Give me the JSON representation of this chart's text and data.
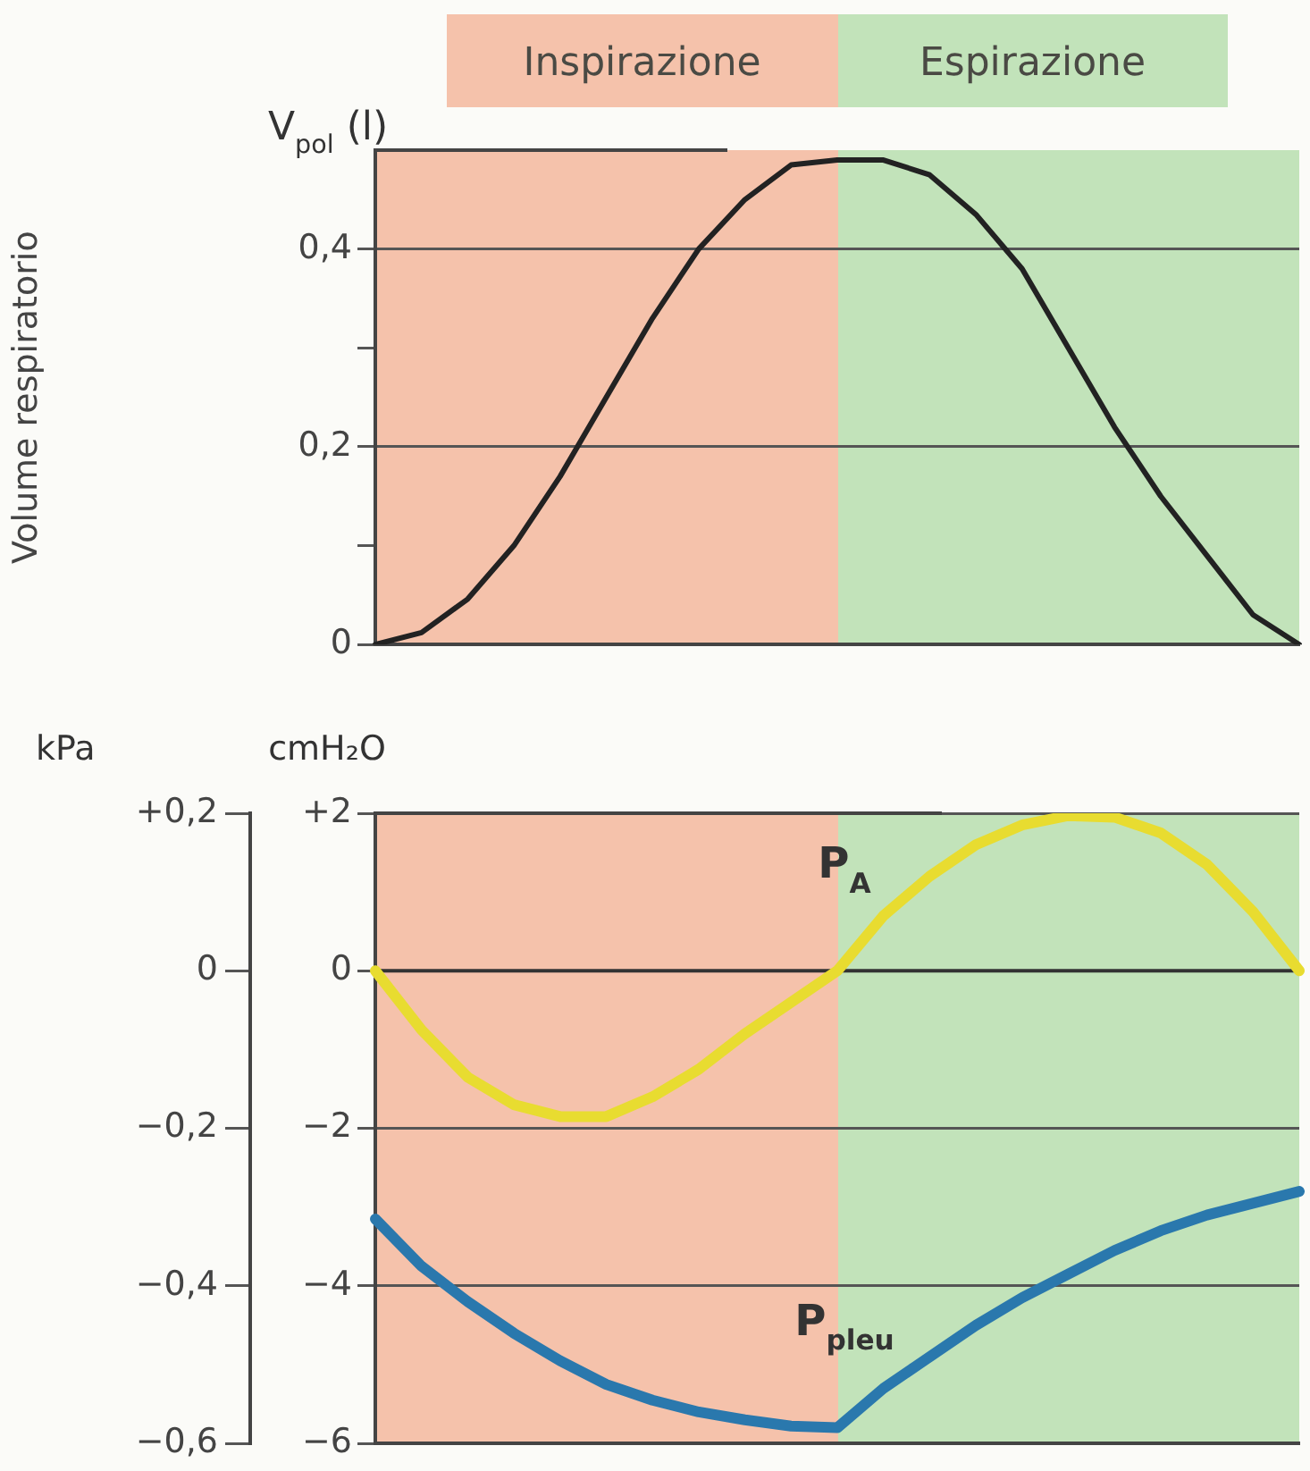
{
  "chart_data": [
    {
      "type": "line",
      "ylabel": "Volume respiratorio",
      "annotations": [
        "V$_{pol}$ (l)",
        "Inspirazione",
        "Espirazione"
      ],
      "categories": [
        null,
        null,
        null,
        null,
        null,
        null,
        null,
        null,
        null,
        null,
        null,
        null,
        null,
        null,
        null,
        null,
        null,
        null,
        null,
        null,
        null
      ],
      "tick_labels": "y",
      "series": [
        {
          "color": "#222222",
          "values": [
            0,
            0.012,
            0.046,
            0.1,
            0.17,
            0.25,
            0.33,
            0.4,
            0.45,
            0.485,
            0.49,
            0.49,
            0.475,
            0.435,
            0.38,
            0.3,
            0.22,
            0.15,
            0.09,
            0.03,
            0
          ]
        }
      ],
      "ylim": [
        0,
        0.5
      ],
      "yticks": [
        0,
        {
          "value": 0.1,
          "label": null
        },
        {
          "value": 0.2,
          "label": "0,2"
        },
        {
          "value": 0.3,
          "label": null
        },
        {
          "value": 0.4,
          "label": "0,4"
        }
      ],
      "grid": "y",
      "marker": "none",
      "legend": false
    },
    {
      "type": "line",
      "ylabel": "cmH₂O",
      "y2label": "kPa",
      "categories": [
        null,
        null,
        null,
        null,
        null,
        null,
        null,
        null,
        null,
        null,
        null,
        null,
        null,
        null,
        null,
        null,
        null,
        null,
        null,
        null,
        null
      ],
      "tick_labels": "y",
      "series": [
        {
          "name": "P$_{A}$",
          "color": "#e8dc30",
          "values": [
            0,
            -0.75,
            -1.35,
            -1.7,
            -1.85,
            -1.85,
            -1.6,
            -1.25,
            -0.8,
            -0.4,
            0,
            0.7,
            1.2,
            1.6,
            1.85,
            1.97,
            1.95,
            1.75,
            1.35,
            0.75,
            0
          ]
        },
        {
          "name": "P$_{pleu}$",
          "color": "#2a78ad",
          "values": [
            -3.15,
            -3.75,
            -4.2,
            -4.6,
            -4.95,
            -5.25,
            -5.45,
            -5.6,
            -5.7,
            -5.78,
            -5.8,
            -5.3,
            -4.9,
            -4.5,
            -4.15,
            -3.85,
            -3.55,
            -3.3,
            -3.1,
            -2.95,
            -2.8
          ]
        }
      ],
      "ylim": [
        -6,
        2
      ],
      "yticks": [
        {
          "value": -6,
          "label": "−6"
        },
        {
          "value": -4,
          "label": "−4"
        },
        {
          "value": -2,
          "label": "−2"
        },
        0,
        {
          "value": 2,
          "label": "+2"
        }
      ],
      "y2lim": [
        -0.6,
        0.2
      ],
      "y2ticks": [
        {
          "value": -0.6,
          "label": "−0,6"
        },
        {
          "value": -0.4,
          "label": "−0,4"
        },
        {
          "value": -0.2,
          "label": "−0,2"
        },
        0,
        {
          "value": 0.2,
          "label": "+0,2"
        }
      ],
      "ref_lines": [
        {
          "axis": "y",
          "value": 0,
          "color": "#333333"
        }
      ],
      "grid": "y",
      "marker": "none",
      "legend": false
    }
  ]
}
